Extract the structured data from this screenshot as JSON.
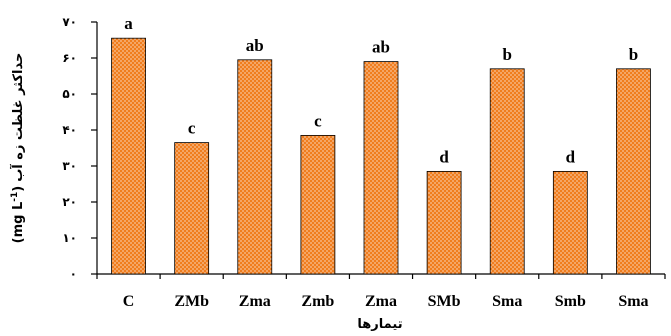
{
  "chart_data": {
    "type": "bar",
    "title": "",
    "xlabel": "تیمارها",
    "ylabel": "حداکثر غلظت زه آب (mg L-1)",
    "ylabel_parts": {
      "text": "حداکثر غلظت زه آب",
      "unit_open": "(mg L",
      "unit_exp": "-1",
      "unit_close": ")"
    },
    "ylim": [
      0,
      70
    ],
    "yticks": [
      0,
      10,
      20,
      30,
      40,
      50,
      60,
      70
    ],
    "ytick_labels": [
      "۰",
      "۱۰",
      "۲۰",
      "۳۰",
      "۴۰",
      "۵۰",
      "۶۰",
      "۷۰"
    ],
    "grid": false,
    "categories": [
      "C",
      "ZMb",
      "Zma",
      "Zmb",
      "Zma",
      "SMb",
      "Sma",
      "Smb",
      "Sma"
    ],
    "values": [
      65.5,
      36.5,
      59.5,
      38.5,
      59,
      28.5,
      57,
      28.5,
      57
    ],
    "significance_letters": [
      "a",
      "c",
      "ab",
      "c",
      "ab",
      "d",
      "b",
      "d",
      "b"
    ],
    "colors": {
      "bar_fill": "#f07d1e",
      "bar_dots": "#ffffff",
      "bar_stroke": "#000000"
    }
  }
}
